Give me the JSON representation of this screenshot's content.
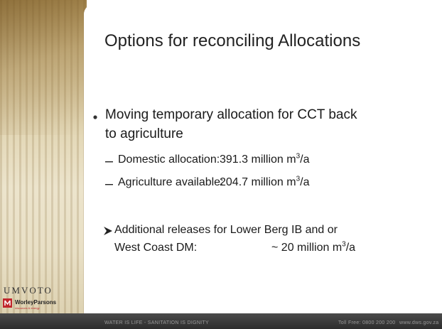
{
  "slide": {
    "title": "Options for reconciling Allocations",
    "bullet": {
      "line1": "Moving temporary allocation for CCT back",
      "line2": "to agriculture"
    },
    "sub_bullets": [
      {
        "label": "Domestic allocation:",
        "value": "391.3 million m",
        "sup": "3",
        "unit": "/a"
      },
      {
        "label": "Agriculture available:",
        "value": "204.7 million m",
        "sup": "3",
        "unit": "/a"
      }
    ],
    "arrow_bullet": {
      "line1": "Additional releases for Lower Berg IB and or",
      "label": "West Coast DM:",
      "value": "~ 20 million m",
      "sup": "3",
      "unit": "/a"
    },
    "logos": {
      "umvoto": "UMVOTO",
      "worley": "WorleyParsons",
      "worley_tagline": "resources & energy"
    },
    "footer": {
      "slogan": "WATER IS LIFE - SANITATION IS DIGNITY",
      "toll_free": "Toll Free: 0800 200 200",
      "website": "www.dws.gov.za"
    }
  }
}
